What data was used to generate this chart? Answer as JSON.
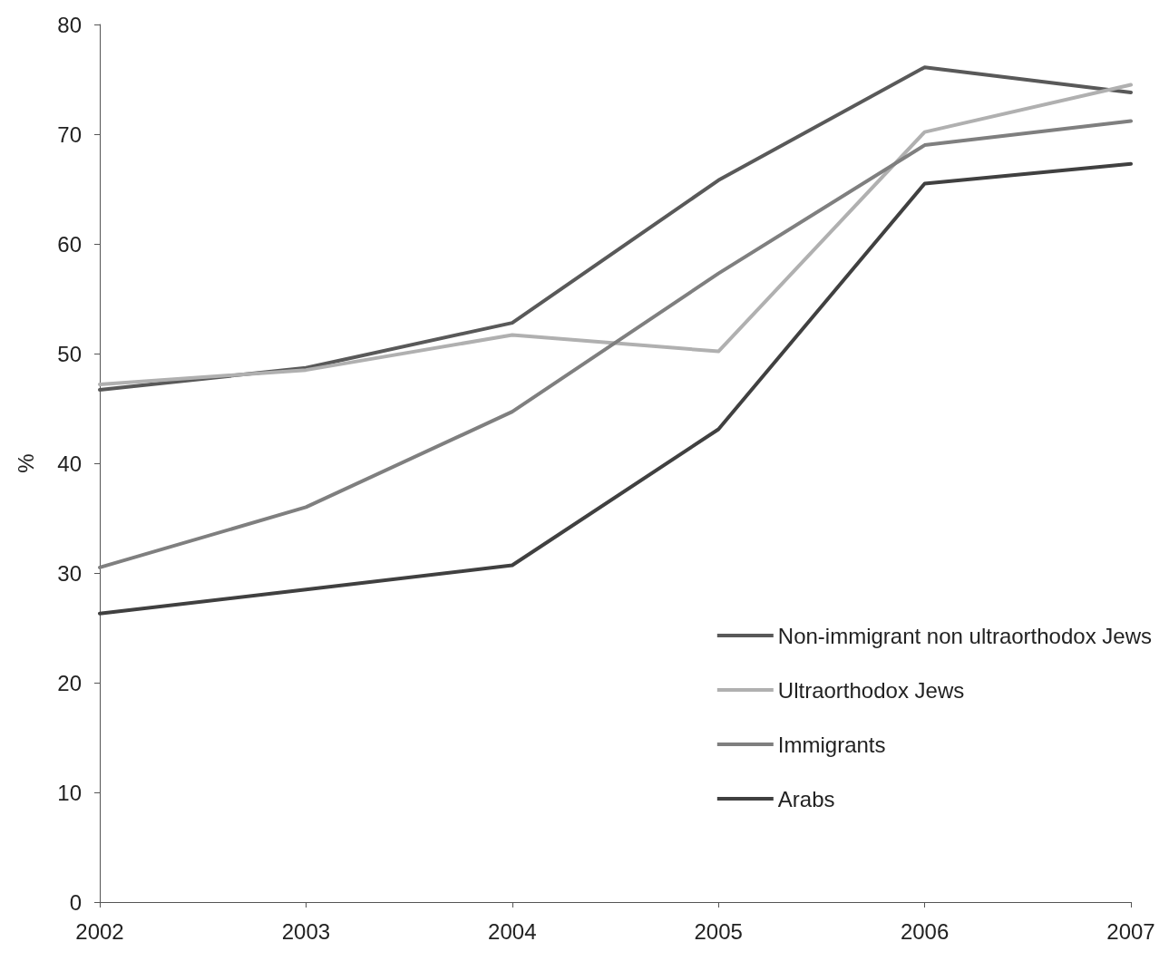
{
  "chart_data": {
    "type": "line",
    "ylabel": "%",
    "categories": [
      "2002",
      "2003",
      "2004",
      "2005",
      "2006",
      "2007"
    ],
    "series": [
      {
        "name": "Non-immigrant non ultraorthodox Jews",
        "color": "#595959",
        "values": [
          46.7,
          48.7,
          52.8,
          65.8,
          76.1,
          73.8
        ]
      },
      {
        "name": "Ultraorthodox Jews",
        "color": "#b0b0b0",
        "values": [
          47.2,
          48.5,
          51.7,
          50.2,
          70.2,
          74.5
        ]
      },
      {
        "name": "Immigrants",
        "color": "#7f7f7f",
        "values": [
          30.5,
          36.0,
          44.7,
          57.3,
          69.0,
          71.2
        ]
      },
      {
        "name": "Arabs",
        "color": "#404040",
        "values": [
          26.3,
          28.5,
          30.7,
          43.1,
          65.5,
          67.3
        ]
      }
    ],
    "ylim": [
      0,
      80
    ],
    "yticks": [
      0,
      10,
      20,
      30,
      40,
      50,
      60,
      70,
      80
    ],
    "grid": false,
    "legend": "bottom right",
    "marker": "none",
    "line_style": "solid"
  }
}
